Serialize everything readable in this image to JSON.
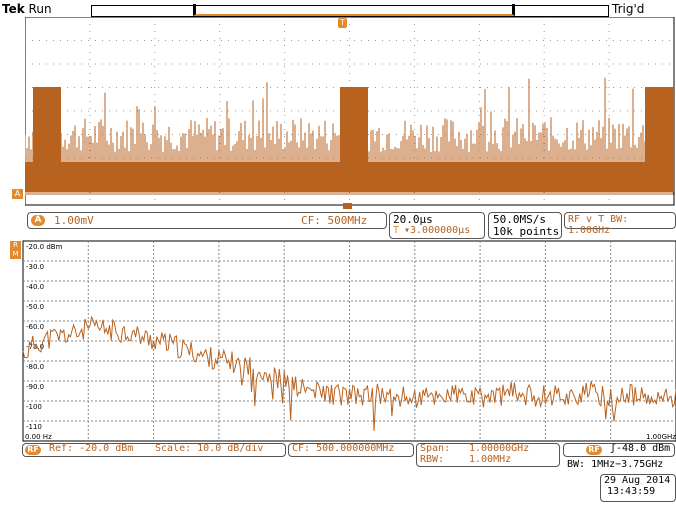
{
  "header": {
    "brand": "Tek",
    "run_state": "Run",
    "trigger_state": "Trig'd"
  },
  "time_panel": {
    "channel_icon": "channel-a-badge",
    "scale": "1.00mV",
    "center_freq": "CF:  500MHz",
    "time_div": "20.0µs",
    "trigger_pos": "▾3.000000µs",
    "sample_rate": "50.0MS/s",
    "record_length": "10k points",
    "rf_mode": "RF v T BW: 1.00GHz"
  },
  "spectrum": {
    "chart_data": {
      "type": "line",
      "title": "",
      "xlabel": "",
      "ylabel": "",
      "ylim": [
        -110,
        -20
      ],
      "y_tick_labels": [
        "-20.0 dBm",
        "-30.0",
        "-40.0",
        "-50.0",
        "-60.0",
        "-70.0",
        "-80.0",
        "-90.0",
        "-100",
        "-110"
      ],
      "x_start_label": "0.00 Hz",
      "x_end_label": "1.00GHz",
      "x_frac": [
        0,
        0.02,
        0.05,
        0.08,
        0.1,
        0.13,
        0.16,
        0.19,
        0.22,
        0.25,
        0.28,
        0.31,
        0.34,
        0.37,
        0.4,
        0.42,
        0.45,
        0.48,
        0.51,
        0.54,
        0.57,
        0.6,
        0.63,
        0.66,
        0.69,
        0.72,
        0.75,
        0.78,
        0.81,
        0.84,
        0.87,
        0.9,
        0.93,
        0.96,
        1.0
      ],
      "values": [
        -71,
        -66,
        -63,
        -62,
        -59,
        -60,
        -61,
        -64,
        -66,
        -69,
        -72,
        -74,
        -76,
        -79,
        -83,
        -86,
        -88,
        -89,
        -90,
        -89,
        -90,
        -91,
        -90,
        -89,
        -91,
        -90,
        -88,
        -90,
        -89,
        -90,
        -88,
        -91,
        -89,
        -92,
        -90
      ]
    },
    "ref_label": "Ref: -20.0 dBm",
    "scale_label": "Scale: 10.0 dB/div",
    "cf_label": "CF: 500.000000MHz",
    "span_label": "Span:",
    "span_value": "1.00000GHz",
    "rbw_label": "RBW:",
    "rbw_value": "1.00MHz",
    "trigger_level": "ʃ-48.0 dBm",
    "bw_label": "BW: 1MHz−3.75GHz",
    "rf_badge": "RF"
  },
  "datetime": {
    "date": "29 Aug 2014",
    "time": "13:43:59"
  },
  "colors": {
    "trace": "#b8621f",
    "accent": "#e3892e"
  }
}
